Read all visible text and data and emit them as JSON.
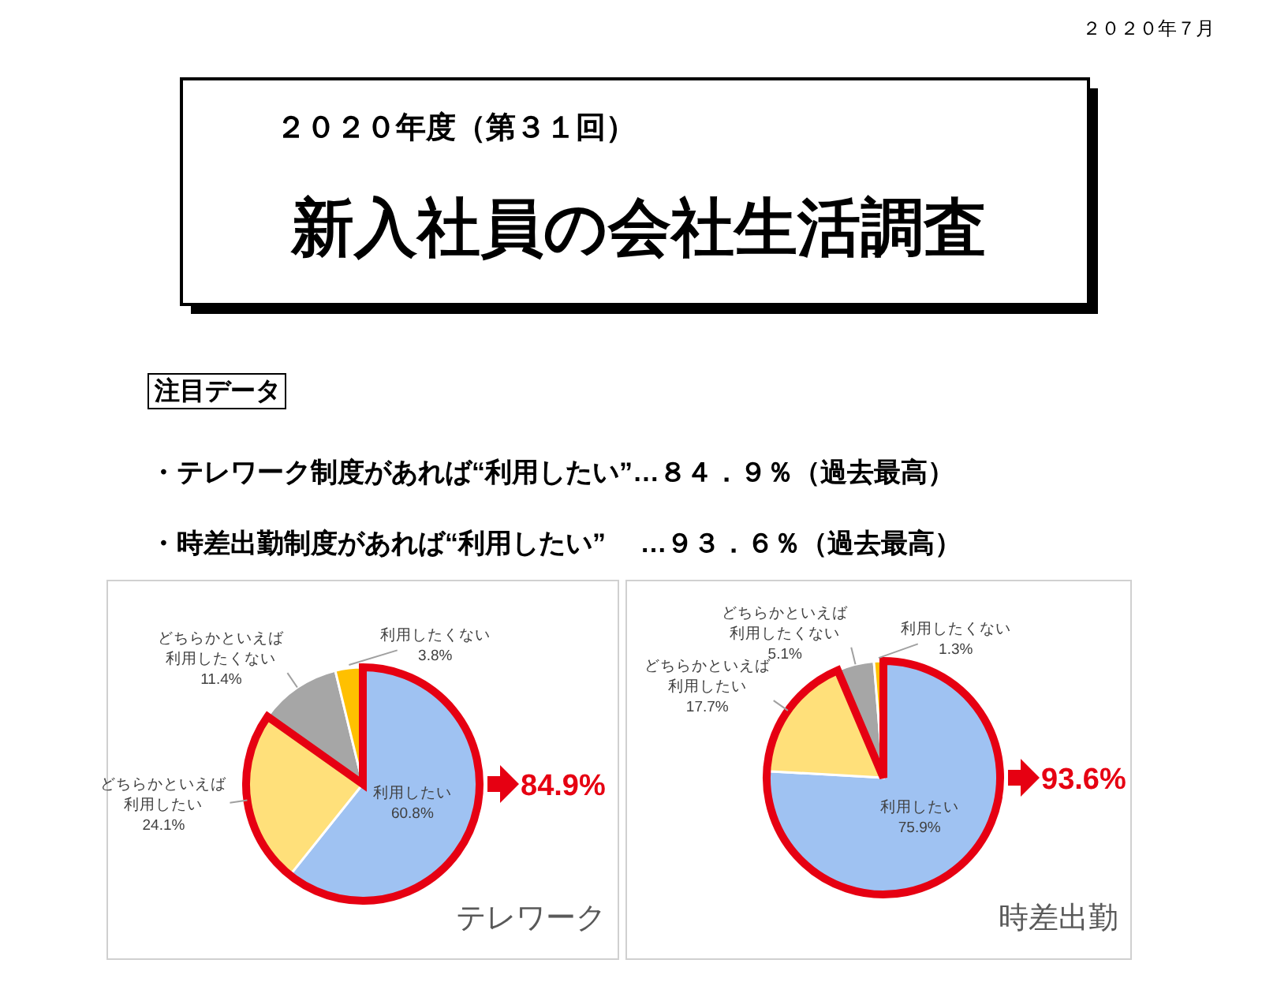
{
  "chart_data": [
    {
      "type": "pie",
      "title": "テレワーク",
      "categories": [
        "利用したい",
        "どちらかといえば利用したい",
        "どちらかといえば利用したくない",
        "利用したくない"
      ],
      "values": [
        60.8,
        24.1,
        11.4,
        3.8
      ],
      "value_labels": [
        "60.8%",
        "24.1%",
        "11.4%",
        "3.8%"
      ],
      "colors": [
        "#9fc2f2",
        "#ffe07a",
        "#a6a6a6",
        "#ffc000"
      ],
      "annotations": [
        "２０２０年７月",
        "２０２０年度（第３１回）",
        "新入社員の会社生活調査",
        "注目データ",
        "・テレワーク制度があれば“利用したい”…８４．９％（過去最高）",
        "・時差出勤制度があれば“利用したい”　 …９３．６％（過去最高）",
        "84.9%"
      ]
    },
    {
      "type": "pie",
      "title": "時差出勤",
      "categories": [
        "利用したい",
        "どちらかといえば利用したい",
        "どちらかといえば利用したくない",
        "利用したくない"
      ],
      "values": [
        75.9,
        17.7,
        5.1,
        1.3
      ],
      "value_labels": [
        "75.9%",
        "17.7%",
        "5.1%",
        "1.3%"
      ],
      "colors": [
        "#9fc2f2",
        "#ffe07a",
        "#a6a6a6",
        "#ffc000"
      ],
      "annotations": [
        "93.6%"
      ]
    }
  ]
}
